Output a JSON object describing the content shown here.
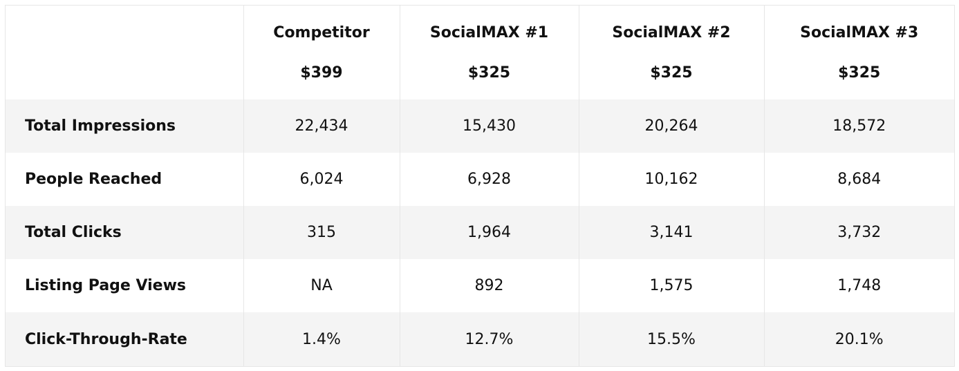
{
  "table": {
    "columns": [
      {
        "name": "Competitor",
        "price": "$399"
      },
      {
        "name": "SocialMAX #1",
        "price": "$325"
      },
      {
        "name": "SocialMAX #2",
        "price": "$325"
      },
      {
        "name": "SocialMAX #3",
        "price": "$325"
      }
    ],
    "rows": [
      {
        "label": "Total Impressions",
        "values": [
          "22,434",
          "15,430",
          "20,264",
          "18,572"
        ]
      },
      {
        "label": "People Reached",
        "values": [
          "6,024",
          "6,928",
          "10,162",
          "8,684"
        ]
      },
      {
        "label": "Total Clicks",
        "values": [
          "315",
          "1,964",
          "3,141",
          "3,732"
        ]
      },
      {
        "label": "Listing Page Views",
        "values": [
          "NA",
          "892",
          "1,575",
          "1,748"
        ]
      },
      {
        "label": "Click-Through-Rate",
        "values": [
          "1.4%",
          "12.7%",
          "15.5%",
          "20.1%"
        ]
      }
    ]
  },
  "colors": {
    "stripe": "#f4f4f4",
    "border": "#e6e6e6",
    "text": "#111111"
  }
}
